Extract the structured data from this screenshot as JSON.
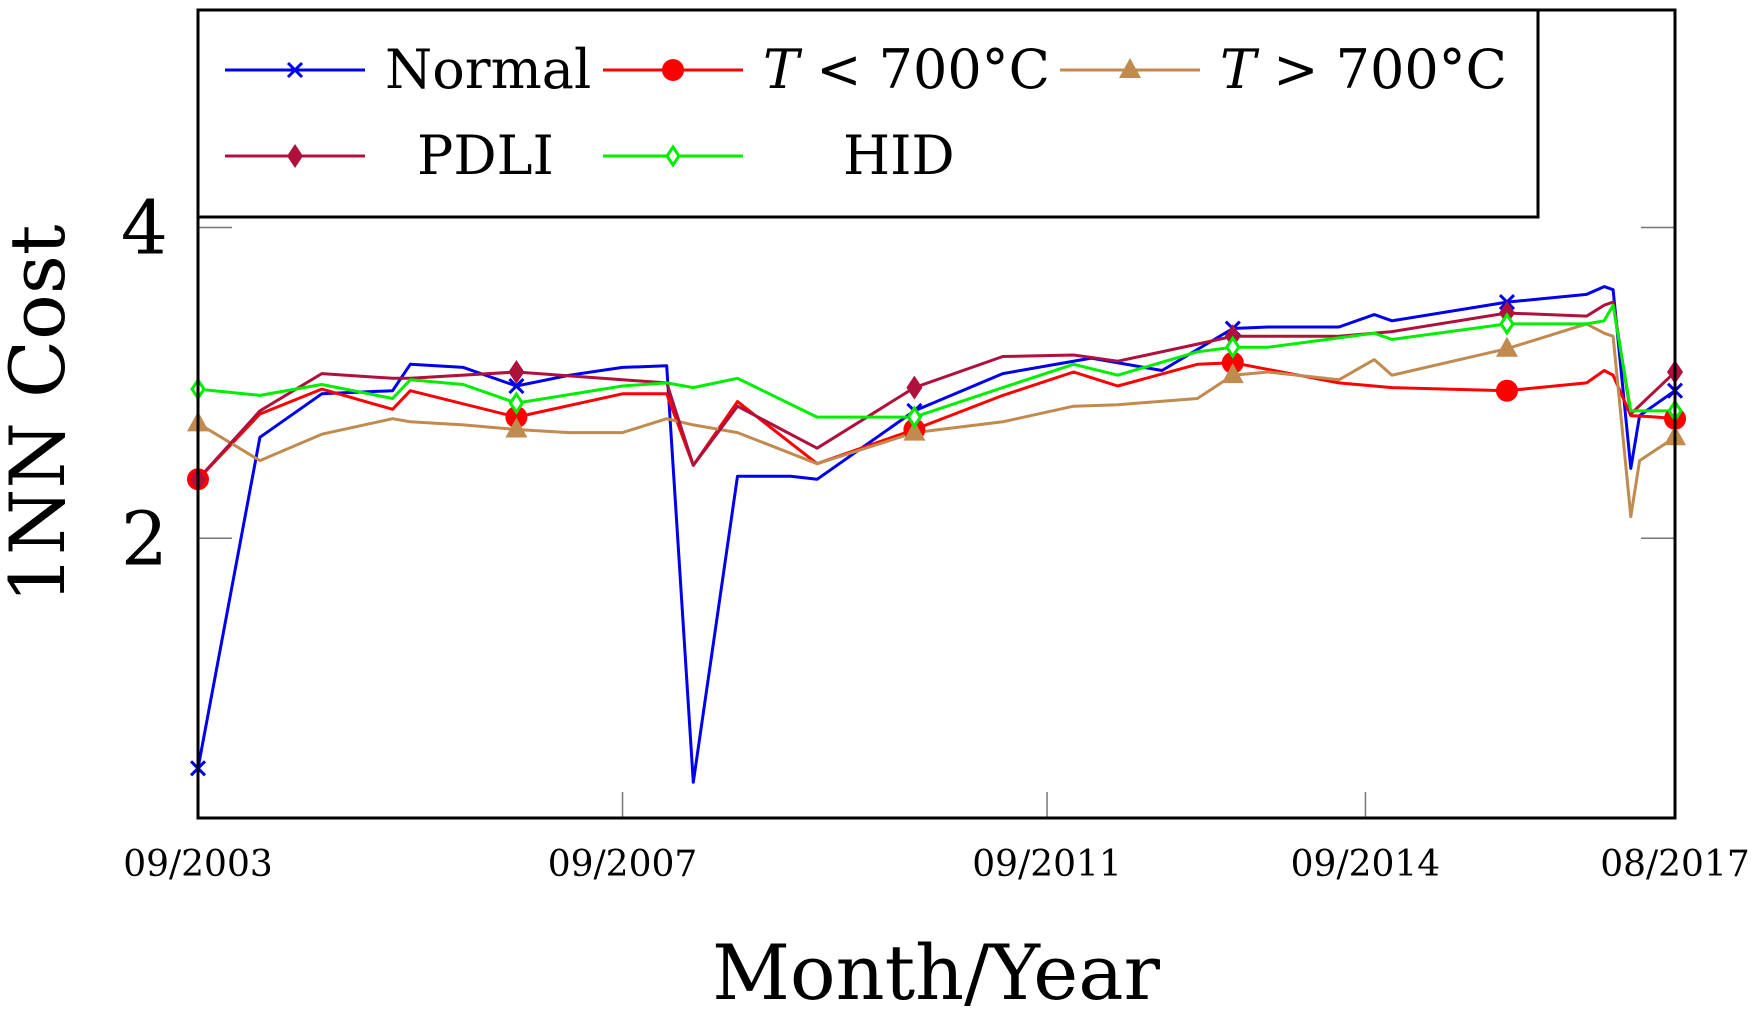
{
  "chart_data": {
    "type": "line",
    "title": "",
    "xlabel": "Month/Year",
    "ylabel": "1NN Cost",
    "xlim": [
      0,
      167
    ],
    "ylim": [
      0.2,
      5.4
    ],
    "xticks": [
      {
        "x": 0,
        "label": "09/2003"
      },
      {
        "x": 48,
        "label": "09/2007"
      },
      {
        "x": 96,
        "label": "09/2011"
      },
      {
        "x": 132,
        "label": "09/2014"
      },
      {
        "x": 167,
        "label": "08/2017"
      }
    ],
    "yticks": [
      {
        "y": 2,
        "label": "2"
      },
      {
        "y": 4,
        "label": "4"
      }
    ],
    "legend_position": "top",
    "series": [
      {
        "name": "Normal",
        "color": "#0000ee",
        "marker": "cross",
        "marker_x": [
          0,
          36,
          81,
          117,
          148,
          167
        ],
        "points": [
          [
            0,
            0.52
          ],
          [
            7,
            2.65
          ],
          [
            14,
            2.93
          ],
          [
            22,
            2.95
          ],
          [
            24,
            3.12
          ],
          [
            30,
            3.1
          ],
          [
            36,
            2.98
          ],
          [
            42,
            3.05
          ],
          [
            48,
            3.1
          ],
          [
            53,
            3.11
          ],
          [
            56,
            0.43
          ],
          [
            61,
            2.4
          ],
          [
            67,
            2.4
          ],
          [
            70,
            2.38
          ],
          [
            81,
            2.82
          ],
          [
            91,
            3.06
          ],
          [
            101,
            3.16
          ],
          [
            109,
            3.08
          ],
          [
            117,
            3.35
          ],
          [
            121,
            3.36
          ],
          [
            129,
            3.36
          ],
          [
            133,
            3.44
          ],
          [
            135,
            3.4
          ],
          [
            148,
            3.52
          ],
          [
            157,
            3.57
          ],
          [
            159,
            3.62
          ],
          [
            160,
            3.6
          ],
          [
            162,
            2.45
          ],
          [
            163,
            2.79
          ],
          [
            167,
            2.95
          ]
        ]
      },
      {
        "name": "T < 700°C",
        "label_prefix": "T",
        "label_suffix": " < 700°C",
        "color": "#ff0000",
        "marker": "circle",
        "marker_x": [
          0,
          36,
          81,
          117,
          148,
          167
        ],
        "points": [
          [
            0,
            2.38
          ],
          [
            7,
            2.8
          ],
          [
            14,
            2.96
          ],
          [
            22,
            2.83
          ],
          [
            24,
            2.95
          ],
          [
            36,
            2.78
          ],
          [
            48,
            2.93
          ],
          [
            53,
            2.93
          ],
          [
            56,
            2.47
          ],
          [
            61,
            2.88
          ],
          [
            70,
            2.48
          ],
          [
            81,
            2.7
          ],
          [
            91,
            2.92
          ],
          [
            99,
            3.07
          ],
          [
            104,
            2.98
          ],
          [
            113,
            3.12
          ],
          [
            117,
            3.13
          ],
          [
            129,
            3.0
          ],
          [
            135,
            2.97
          ],
          [
            148,
            2.95
          ],
          [
            157,
            3.0
          ],
          [
            159,
            3.08
          ],
          [
            160,
            3.05
          ],
          [
            162,
            2.79
          ],
          [
            165,
            2.78
          ],
          [
            167,
            2.77
          ]
        ]
      },
      {
        "name": "T > 700°C",
        "label_prefix": "T",
        "label_suffix": " > 700°C",
        "color": "#c18a4f",
        "marker": "triangle",
        "marker_x": [
          0,
          36,
          81,
          117,
          148,
          167
        ],
        "points": [
          [
            0,
            2.74
          ],
          [
            7,
            2.5
          ],
          [
            14,
            2.67
          ],
          [
            22,
            2.77
          ],
          [
            24,
            2.75
          ],
          [
            30,
            2.73
          ],
          [
            36,
            2.7
          ],
          [
            42,
            2.68
          ],
          [
            48,
            2.68
          ],
          [
            53,
            2.77
          ],
          [
            56,
            2.73
          ],
          [
            61,
            2.68
          ],
          [
            70,
            2.48
          ],
          [
            81,
            2.68
          ],
          [
            91,
            2.75
          ],
          [
            99,
            2.85
          ],
          [
            104,
            2.86
          ],
          [
            113,
            2.9
          ],
          [
            117,
            3.05
          ],
          [
            121,
            3.07
          ],
          [
            129,
            3.02
          ],
          [
            133,
            3.15
          ],
          [
            135,
            3.05
          ],
          [
            148,
            3.22
          ],
          [
            157,
            3.38
          ],
          [
            159,
            3.32
          ],
          [
            160,
            3.3
          ],
          [
            162,
            2.14
          ],
          [
            163,
            2.5
          ],
          [
            167,
            2.65
          ]
        ]
      },
      {
        "name": "PDLI",
        "color": "#b0103c",
        "marker": "diamond",
        "marker_x": [
          0,
          36,
          81,
          117,
          148,
          167
        ],
        "points": [
          [
            0,
            2.38
          ],
          [
            7,
            2.82
          ],
          [
            14,
            3.06
          ],
          [
            22,
            3.03
          ],
          [
            24,
            3.03
          ],
          [
            36,
            3.07
          ],
          [
            48,
            3.02
          ],
          [
            53,
            3.0
          ],
          [
            56,
            2.47
          ],
          [
            61,
            2.85
          ],
          [
            70,
            2.58
          ],
          [
            81,
            2.97
          ],
          [
            91,
            3.17
          ],
          [
            99,
            3.18
          ],
          [
            104,
            3.14
          ],
          [
            113,
            3.25
          ],
          [
            117,
            3.3
          ],
          [
            129,
            3.3
          ],
          [
            135,
            3.33
          ],
          [
            148,
            3.45
          ],
          [
            157,
            3.43
          ],
          [
            159,
            3.5
          ],
          [
            160,
            3.52
          ],
          [
            162,
            2.8
          ],
          [
            167,
            3.07
          ]
        ]
      },
      {
        "name": "HID",
        "color": "#00ee00",
        "marker": "diamond-open",
        "marker_x": [
          0,
          36,
          81,
          117,
          148,
          167
        ],
        "points": [
          [
            0,
            2.96
          ],
          [
            7,
            2.92
          ],
          [
            14,
            2.99
          ],
          [
            22,
            2.9
          ],
          [
            24,
            3.02
          ],
          [
            30,
            2.99
          ],
          [
            36,
            2.87
          ],
          [
            48,
            2.98
          ],
          [
            53,
            3.0
          ],
          [
            56,
            2.97
          ],
          [
            61,
            3.03
          ],
          [
            70,
            2.78
          ],
          [
            81,
            2.78
          ],
          [
            91,
            2.97
          ],
          [
            99,
            3.12
          ],
          [
            104,
            3.05
          ],
          [
            113,
            3.2
          ],
          [
            117,
            3.23
          ],
          [
            121,
            3.23
          ],
          [
            129,
            3.29
          ],
          [
            133,
            3.32
          ],
          [
            135,
            3.28
          ],
          [
            148,
            3.38
          ],
          [
            157,
            3.38
          ],
          [
            159,
            3.4
          ],
          [
            160,
            3.5
          ],
          [
            162,
            2.82
          ],
          [
            167,
            2.82
          ]
        ]
      }
    ]
  }
}
